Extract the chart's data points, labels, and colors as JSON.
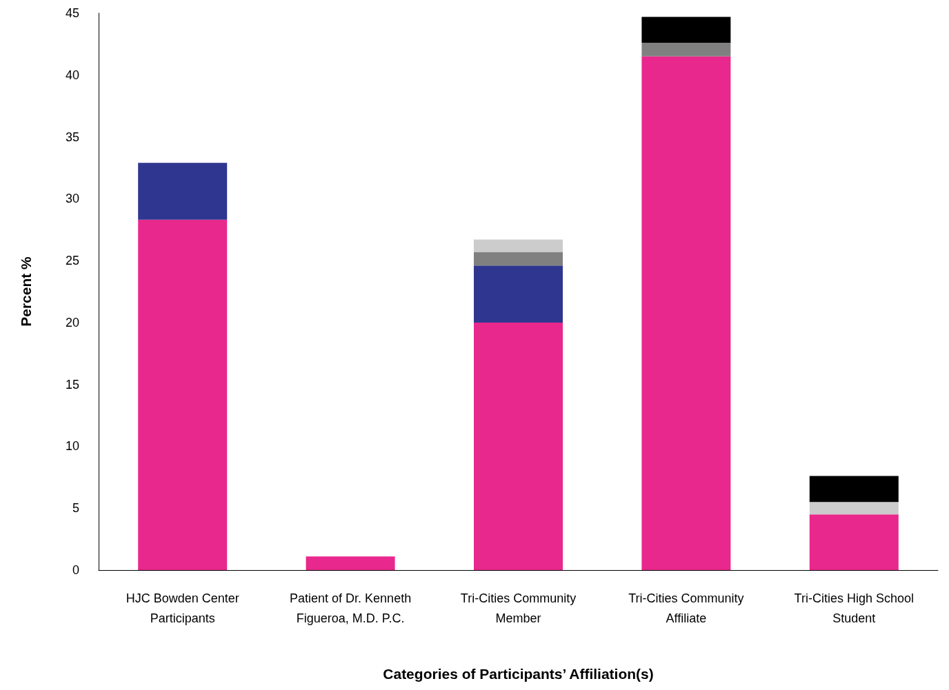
{
  "chart_data": {
    "type": "bar",
    "stacked": true,
    "xlabel": "Categories of Participants’ Affiliation(s)",
    "ylabel": "Percent %",
    "categories": [
      "HJC Bowden Center\nParticipants",
      "Patient of Dr. Kenneth\nFigueroa, M.D. P.C.",
      "Tri-Cities Community\nMember",
      "Tri-Cities Community\nAffiliate",
      "Tri-Cities High School\nStudent"
    ],
    "series": [
      {
        "color": "#e8288c",
        "values": [
          28.3,
          1.1,
          20.0,
          41.5,
          4.5
        ]
      },
      {
        "color": "#2e368f",
        "values": [
          4.6,
          null,
          4.6,
          null,
          null
        ]
      },
      {
        "color": "#808080",
        "values": [
          null,
          null,
          1.1,
          1.1,
          null
        ]
      },
      {
        "color": "#cccccc",
        "values": [
          null,
          null,
          1.0,
          null,
          1.0
        ]
      },
      {
        "color": "#000000",
        "values": [
          null,
          null,
          null,
          2.1,
          2.1
        ]
      }
    ],
    "ylim": [
      0,
      45
    ],
    "yticks": [
      0,
      5,
      10,
      15,
      20,
      25,
      30,
      35,
      40,
      45
    ],
    "grid": false
  }
}
